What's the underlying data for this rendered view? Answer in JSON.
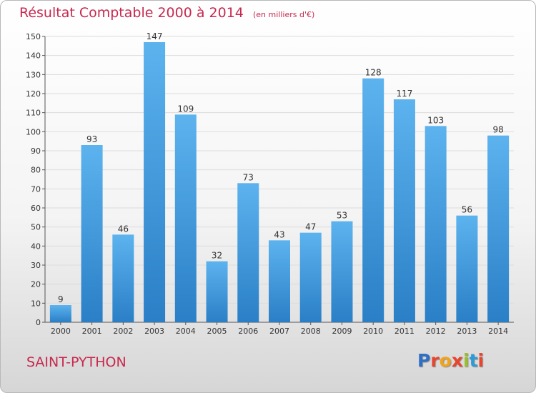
{
  "chart_data": {
    "type": "bar",
    "title": "Résultat Comptable 2000 à 2014",
    "subtitle": "(en milliers d'€)",
    "categories": [
      "2000",
      "2001",
      "2002",
      "2003",
      "2004",
      "2005",
      "2006",
      "2007",
      "2008",
      "2009",
      "2010",
      "2011",
      "2012",
      "2013",
      "2014"
    ],
    "values": [
      9,
      93,
      46,
      147,
      109,
      32,
      73,
      43,
      47,
      53,
      128,
      117,
      103,
      56,
      98
    ],
    "ylim": [
      0,
      150
    ],
    "yticks": [
      0,
      10,
      20,
      30,
      40,
      50,
      60,
      70,
      80,
      90,
      100,
      110,
      120,
      130,
      140,
      150
    ],
    "grid": true,
    "bar_color": "#4a9fe0",
    "xlabel": "",
    "ylabel": ""
  },
  "footer": {
    "commune": "SAINT-PYTHON",
    "logo_text": "Proxiti"
  },
  "colors": {
    "title": "#c8284e",
    "logo": [
      "#2f6fc4",
      "#e8452c",
      "#f2a31b",
      "#e8452c",
      "#9bbf2a",
      "#2f9ad4",
      "#e8452c"
    ]
  }
}
